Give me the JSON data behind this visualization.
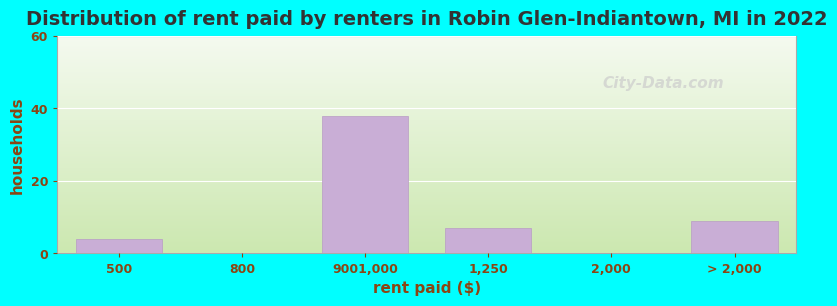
{
  "title": "Distribution of rent paid by renters in Robin Glen-Indiantown, MI in 2022",
  "xlabel": "rent paid ($)",
  "ylabel": "households",
  "categories": [
    "500",
    "800",
    "9001,000",
    "1,250",
    "2,000",
    "> 2,000"
  ],
  "values": [
    4,
    0,
    38,
    7,
    0,
    9
  ],
  "bar_color": "#c9aed6",
  "bar_edge_color": "#b89cc4",
  "ylim": [
    0,
    60
  ],
  "yticks": [
    0,
    20,
    40,
    60
  ],
  "bg_color_outer": "#00ffff",
  "bg_inner_top": "#f5faf0",
  "bg_inner_bottom": "#cce8b0",
  "title_fontsize": 14,
  "axis_label_fontsize": 11,
  "tick_fontsize": 9,
  "watermark_text": "City-Data.com",
  "title_color": "#333333",
  "label_color": "#8b4513"
}
